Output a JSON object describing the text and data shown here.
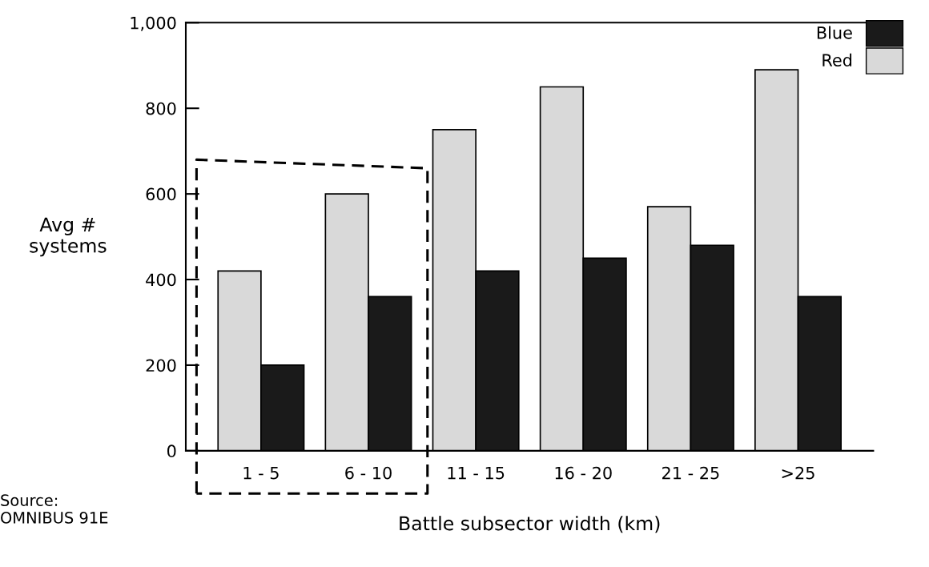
{
  "chart_data": {
    "type": "bar",
    "xlabel": "Battle subsector width (km)",
    "ylabel": "Avg #\nsystems",
    "categories": [
      "1 - 5",
      "6 - 10",
      "11 - 15",
      "16 - 20",
      "21 - 25",
      ">25"
    ],
    "series": [
      {
        "name": "Red",
        "color": "#d9d9d9",
        "values": [
          420,
          600,
          750,
          850,
          570,
          890
        ]
      },
      {
        "name": "Blue",
        "color": "#1a1a1a",
        "values": [
          200,
          360,
          420,
          450,
          480,
          360
        ]
      }
    ],
    "ylim": [
      0,
      1000
    ],
    "yticks": [
      0,
      200,
      400,
      600,
      800,
      {
        "value": 1000,
        "label": "1,000"
      }
    ],
    "grid": false,
    "legend": "top right",
    "annotations": [
      "Source:\nOMNIBUS 91E"
    ]
  }
}
